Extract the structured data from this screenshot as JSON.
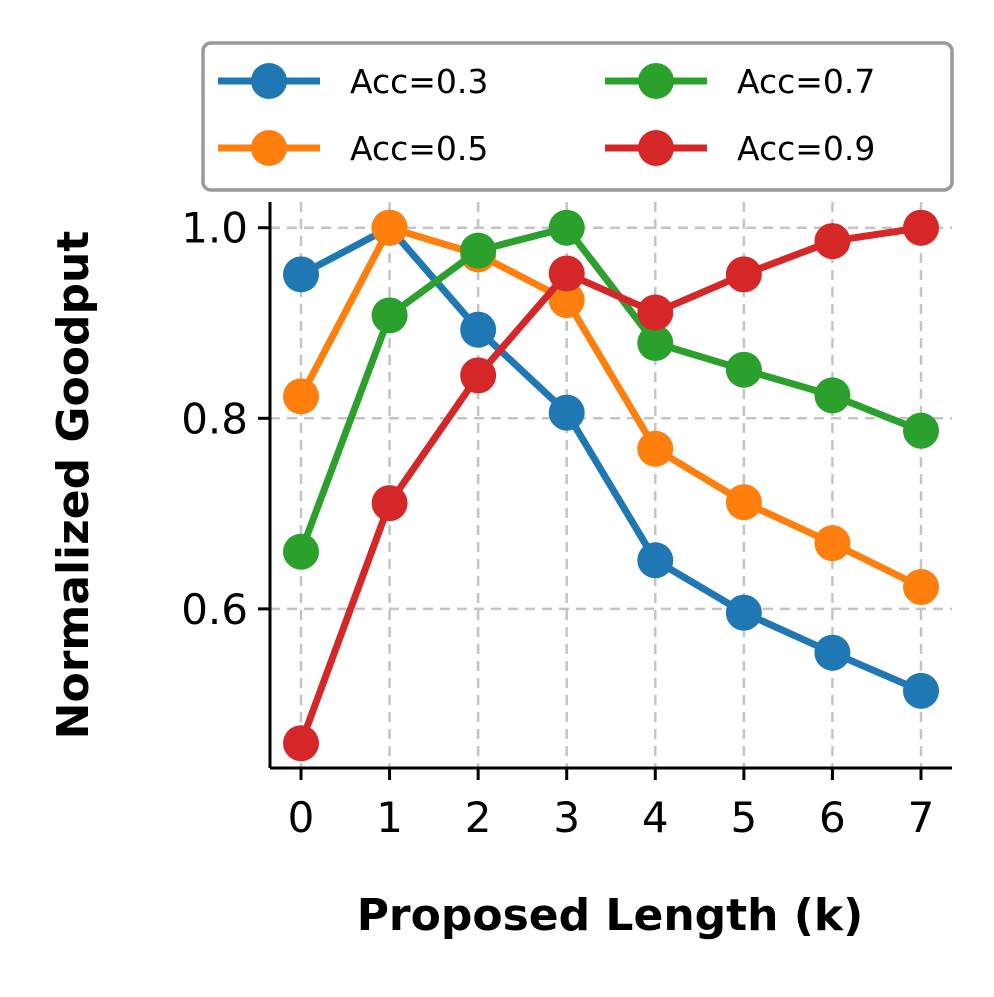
{
  "chart_data": {
    "type": "line",
    "xlabel": "Proposed Length (k)",
    "ylabel": "Normalized Goodput",
    "x": [
      0,
      1,
      2,
      3,
      4,
      5,
      6,
      7
    ],
    "xlim": [
      -0.35,
      7.35
    ],
    "ylim": [
      0.433,
      1.027
    ],
    "x_ticks": [
      0,
      1,
      2,
      3,
      4,
      5,
      6,
      7
    ],
    "y_ticks": [
      0.6,
      0.8,
      1.0
    ],
    "x_tick_labels": [
      "0",
      "1",
      "2",
      "3",
      "4",
      "5",
      "6",
      "7"
    ],
    "y_tick_labels": [
      "0.6",
      "0.8",
      "1.0"
    ],
    "grid": true,
    "legend_position": "top",
    "series": [
      {
        "name": "Acc=0.3",
        "color": "#1f77b4",
        "values": [
          0.951,
          1.0,
          0.893,
          0.806,
          0.651,
          0.596,
          0.554,
          0.514
        ]
      },
      {
        "name": "Acc=0.5",
        "color": "#ff7f0e",
        "values": [
          0.823,
          1.0,
          0.972,
          0.924,
          0.768,
          0.712,
          0.669,
          0.623
        ]
      },
      {
        "name": "Acc=0.7",
        "color": "#2ca02c",
        "values": [
          0.66,
          0.908,
          0.976,
          1.0,
          0.879,
          0.851,
          0.824,
          0.787
        ]
      },
      {
        "name": "Acc=0.9",
        "color": "#d62728",
        "values": [
          0.459,
          0.711,
          0.845,
          0.952,
          0.911,
          0.951,
          0.986,
          1.0
        ]
      }
    ]
  }
}
